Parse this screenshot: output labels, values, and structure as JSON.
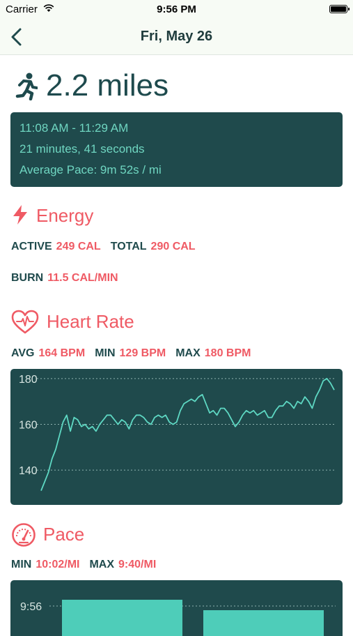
{
  "status_bar": {
    "carrier": "Carrier",
    "time": "9:56 PM"
  },
  "nav": {
    "title": "Fri, May 26"
  },
  "distance": {
    "value": "2.2 miles"
  },
  "summary": {
    "time_range": "11:08 AM - 11:29 AM",
    "duration": "21 minutes, 41 seconds",
    "avg_pace": "Average Pace: 9m 52s / mi"
  },
  "energy": {
    "title": "Energy",
    "active_label": "ACTIVE",
    "active_value": "249 CAL",
    "total_label": "TOTAL",
    "total_value": "290 CAL",
    "burn_label": "BURN",
    "burn_value": "11.5 CAL/MIN"
  },
  "heart_rate": {
    "title": "Heart Rate",
    "avg_label": "AVG",
    "avg_value": "164 BPM",
    "min_label": "MIN",
    "min_value": "129 BPM",
    "max_label": "MAX",
    "max_value": "180 BPM"
  },
  "pace": {
    "title": "Pace",
    "min_label": "MIN",
    "min_value": "10:02/MI",
    "max_label": "MAX",
    "max_value": "9:40/MI"
  },
  "colors": {
    "accent": "#ef5a64",
    "panel": "#1f4a4c",
    "teal": "#5ed8c3"
  },
  "chart_data": [
    {
      "type": "line",
      "ylim": [
        126,
        183
      ],
      "y_ticks": [
        "140",
        "160",
        "180"
      ],
      "y_tick_values": [
        140,
        160,
        180
      ],
      "x": [
        0,
        1,
        2,
        3,
        4,
        5,
        6,
        7,
        8,
        9,
        10,
        11,
        12,
        13,
        14,
        15,
        16,
        17,
        18,
        19,
        20,
        21,
        22,
        23,
        24,
        25,
        26,
        27,
        28,
        29,
        30,
        31,
        32,
        33,
        34,
        35,
        36,
        37,
        38,
        39,
        40,
        41,
        42,
        43,
        44,
        45,
        46,
        47,
        48,
        49,
        50,
        51,
        52,
        53,
        54,
        55,
        56,
        57,
        58,
        59,
        60,
        61,
        62,
        63,
        64,
        65,
        66,
        67,
        68,
        69,
        70,
        71,
        72,
        73,
        74,
        75,
        76,
        77,
        78,
        79,
        80
      ],
      "values": [
        131,
        135,
        139,
        145,
        149,
        155,
        161,
        164,
        157,
        163,
        162,
        159,
        160,
        158,
        159,
        157,
        160,
        162,
        164,
        164,
        162,
        160,
        162,
        161,
        158,
        162,
        164,
        164,
        163,
        161,
        160,
        163,
        164,
        163,
        164,
        161,
        160,
        161,
        166,
        169,
        170,
        171,
        170,
        172,
        173,
        169,
        165,
        166,
        164,
        167,
        167,
        165,
        162,
        159,
        161,
        164,
        166,
        165,
        166,
        164,
        165,
        166,
        163,
        163,
        166,
        168,
        168,
        170,
        169,
        167,
        170,
        169,
        172,
        170,
        167,
        172,
        175,
        179,
        180,
        178,
        175
      ]
    },
    {
      "type": "bar",
      "y_ticks": [
        "9:56"
      ],
      "values": [
        9.95,
        9.95
      ]
    }
  ]
}
